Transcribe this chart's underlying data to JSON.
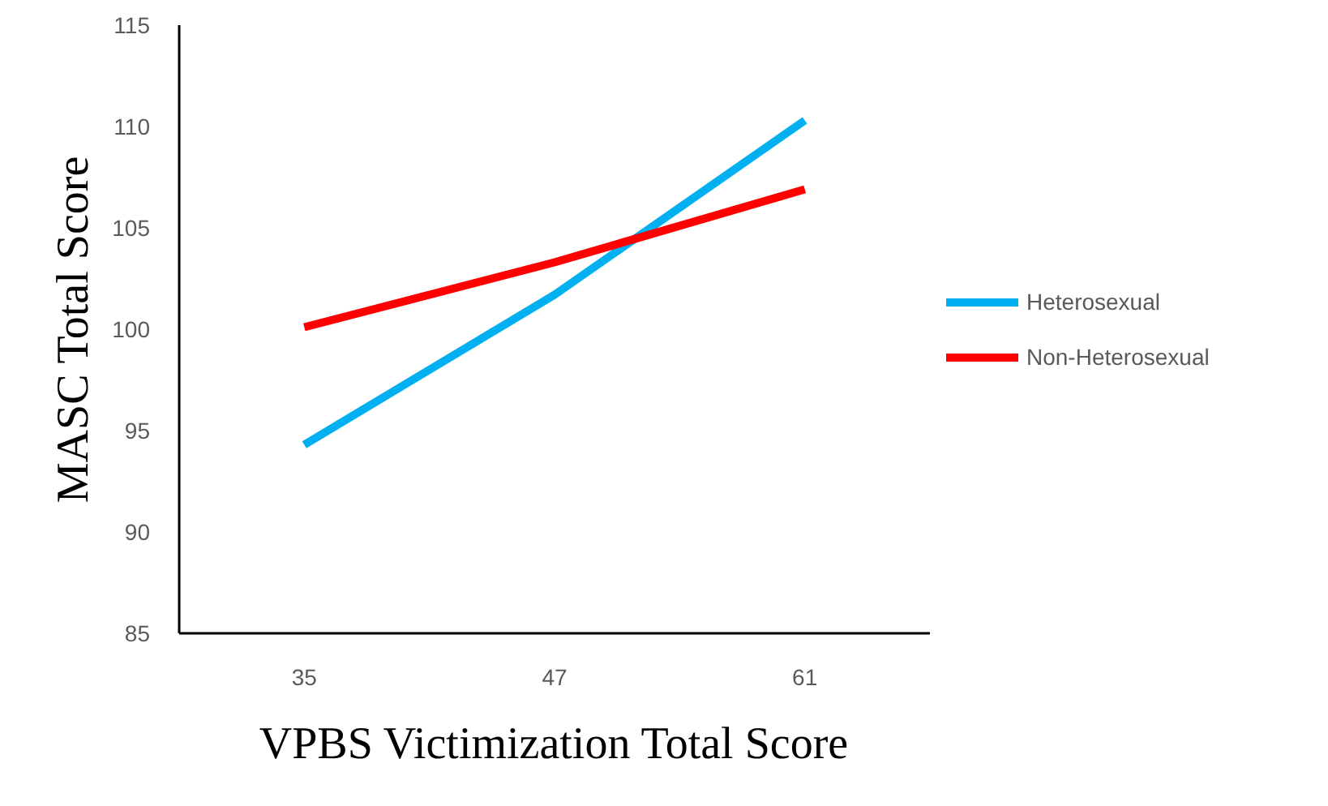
{
  "chart_data": {
    "type": "line",
    "xlabel": "VPBS Victimization Total Score",
    "ylabel": "MASC Total Score",
    "categories": [
      "35",
      "47",
      "61"
    ],
    "series": [
      {
        "name": "Heterosexual",
        "color": "#00b0f0",
        "values": [
          94.3,
          101.7,
          110.3
        ]
      },
      {
        "name": "Non-Heterosexual",
        "color": "#ff0000",
        "values": [
          100.1,
          103.3,
          106.9
        ]
      }
    ],
    "ylim": [
      85,
      115
    ],
    "yticks": [
      85,
      90,
      95,
      100,
      105,
      110,
      115
    ],
    "grid": false,
    "legend": "right",
    "marker": "none",
    "line_style": "solid"
  }
}
